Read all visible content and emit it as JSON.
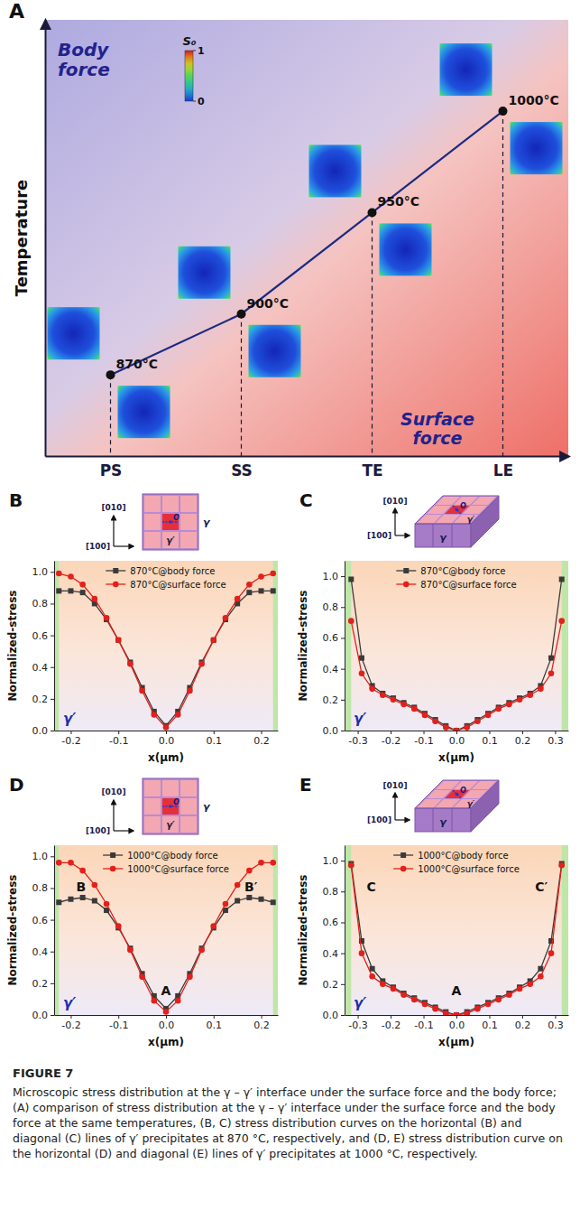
{
  "chart_data": [
    {
      "type": "line",
      "title": "A",
      "categories": [
        "PS",
        "SS",
        "TE",
        "LE"
      ],
      "y_label": "Temperature",
      "series": [
        {
          "values": [
            870,
            900,
            950,
            1000
          ],
          "value_labels": [
            "870°C",
            "900°C",
            "950°C",
            "1000°C"
          ],
          "color": "#1c2a80",
          "marker": "circle"
        }
      ],
      "ylim": [
        830,
        1045
      ],
      "yticks": [],
      "tick_labels": "x",
      "data_labels": true,
      "annotations": [
        "Body force",
        "Surface force"
      ],
      "colorbar": {
        "label": "S₀",
        "range": [
          0,
          1
        ],
        "ticks": [
          1,
          0
        ]
      }
    },
    {
      "type": "line",
      "title": "B",
      "x": [
        -0.225,
        -0.2,
        -0.175,
        -0.15,
        -0.125,
        -0.1,
        -0.075,
        -0.05,
        -0.025,
        0,
        0.025,
        0.05,
        0.075,
        0.1,
        0.125,
        0.15,
        0.175,
        0.2,
        0.225
      ],
      "series": [
        {
          "name": "870°C@body force",
          "color": "#3a3a3a",
          "marker": "square",
          "values": [
            0.88,
            0.88,
            0.87,
            0.8,
            0.7,
            0.57,
            0.43,
            0.27,
            0.12,
            0.03,
            0.12,
            0.27,
            0.43,
            0.57,
            0.7,
            0.8,
            0.87,
            0.88,
            0.88
          ]
        },
        {
          "name": "870°C@surface force",
          "color": "#e3201b",
          "marker": "circle",
          "values": [
            0.99,
            0.97,
            0.92,
            0.83,
            0.71,
            0.57,
            0.42,
            0.25,
            0.1,
            0.02,
            0.1,
            0.25,
            0.42,
            0.57,
            0.71,
            0.83,
            0.92,
            0.97,
            0.99
          ]
        }
      ],
      "xlim": [
        -0.235,
        0.235
      ],
      "xticks": [
        -0.2,
        -0.1,
        {
          "value": 0,
          "label": "0.0"
        },
        0.1,
        0.2
      ],
      "ylim": [
        0,
        1.07
      ],
      "yticks": [
        {
          "value": 0,
          "label": "0.0"
        },
        0.2,
        0.4,
        0.6,
        0.8,
        {
          "value": 1,
          "label": "1.0"
        }
      ],
      "x_label": "x(μm)",
      "y_label": "Normalized-stress",
      "legend": "top",
      "annotations": {
        "inset": [
          "[010]",
          "[100]",
          "O",
          "γ′",
          "γ"
        ],
        "plot": [
          "γ′"
        ]
      }
    },
    {
      "type": "line",
      "title": "C",
      "x": [
        -0.32,
        -0.288,
        -0.256,
        -0.224,
        -0.192,
        -0.16,
        -0.128,
        -0.096,
        -0.064,
        -0.032,
        0,
        0.032,
        0.064,
        0.096,
        0.128,
        0.16,
        0.192,
        0.224,
        0.256,
        0.288,
        0.32
      ],
      "series": [
        {
          "name": "870°C@body force",
          "color": "#3a3a3a",
          "marker": "square",
          "values": [
            0.98,
            0.47,
            0.29,
            0.24,
            0.21,
            0.18,
            0.15,
            0.11,
            0.07,
            0.03,
            0,
            0.03,
            0.07,
            0.11,
            0.15,
            0.18,
            0.21,
            0.24,
            0.29,
            0.47,
            0.98
          ]
        },
        {
          "name": "870°C@surface force",
          "color": "#e3201b",
          "marker": "circle",
          "values": [
            0.71,
            0.37,
            0.27,
            0.23,
            0.2,
            0.17,
            0.14,
            0.1,
            0.06,
            0.02,
            0,
            0.02,
            0.06,
            0.1,
            0.14,
            0.17,
            0.2,
            0.23,
            0.27,
            0.37,
            0.71
          ]
        }
      ],
      "xlim": [
        -0.34,
        0.34
      ],
      "xticks": [
        -0.3,
        -0.2,
        -0.1,
        {
          "value": 0,
          "label": "0.0"
        },
        0.1,
        0.2,
        0.3
      ],
      "ylim": [
        0,
        1.1
      ],
      "yticks": [
        {
          "value": 0,
          "label": "0.0"
        },
        0.2,
        0.4,
        0.6,
        0.8,
        {
          "value": 1,
          "label": "1.0"
        }
      ],
      "x_label": "x(μm)",
      "y_label": "Normalized-stress",
      "legend": "top",
      "annotations": {
        "inset": [
          "[010]",
          "[100]",
          "O",
          "γ′",
          "γ"
        ],
        "plot": [
          "γ′"
        ]
      }
    },
    {
      "type": "line",
      "title": "D",
      "x": [
        -0.225,
        -0.2,
        -0.175,
        -0.15,
        -0.125,
        -0.1,
        -0.075,
        -0.05,
        -0.025,
        0,
        0.025,
        0.05,
        0.075,
        0.1,
        0.125,
        0.15,
        0.175,
        0.2,
        0.225
      ],
      "series": [
        {
          "name": "1000°C@body force",
          "color": "#3a3a3a",
          "marker": "square",
          "values": [
            0.71,
            0.73,
            0.74,
            0.72,
            0.66,
            0.55,
            0.42,
            0.26,
            0.12,
            0.04,
            0.12,
            0.26,
            0.42,
            0.55,
            0.66,
            0.72,
            0.74,
            0.73,
            0.71
          ]
        },
        {
          "name": "1000°C@surface force",
          "color": "#e3201b",
          "marker": "circle",
          "values": [
            0.96,
            0.96,
            0.91,
            0.82,
            0.7,
            0.56,
            0.41,
            0.24,
            0.09,
            0.02,
            0.09,
            0.24,
            0.41,
            0.56,
            0.7,
            0.82,
            0.91,
            0.96,
            0.96
          ]
        }
      ],
      "xlim": [
        -0.235,
        0.235
      ],
      "xticks": [
        -0.2,
        -0.1,
        {
          "value": 0,
          "label": "0.0"
        },
        0.1,
        0.2
      ],
      "ylim": [
        0,
        1.07
      ],
      "yticks": [
        {
          "value": 0,
          "label": "0.0"
        },
        0.2,
        0.4,
        0.6,
        0.8,
        {
          "value": 1,
          "label": "1.0"
        }
      ],
      "x_label": "x(μm)",
      "y_label": "Normalized-stress",
      "legend": "top",
      "annotations": {
        "inset": [
          "[010]",
          "[100]",
          "O",
          "γ′",
          "γ"
        ],
        "plot": [
          "γ′",
          "A",
          "B",
          "B′"
        ]
      }
    },
    {
      "type": "line",
      "title": "E",
      "x": [
        -0.32,
        -0.288,
        -0.256,
        -0.224,
        -0.192,
        -0.16,
        -0.128,
        -0.096,
        -0.064,
        -0.032,
        0,
        0.032,
        0.064,
        0.096,
        0.128,
        0.16,
        0.192,
        0.224,
        0.256,
        0.288,
        0.32
      ],
      "series": [
        {
          "name": "1000°C@body force",
          "color": "#3a3a3a",
          "marker": "square",
          "values": [
            0.98,
            0.48,
            0.3,
            0.22,
            0.18,
            0.14,
            0.11,
            0.08,
            0.05,
            0.02,
            0,
            0.02,
            0.05,
            0.08,
            0.11,
            0.14,
            0.18,
            0.22,
            0.3,
            0.48,
            0.98
          ]
        },
        {
          "name": "1000°C@surface force",
          "color": "#e3201b",
          "marker": "circle",
          "values": [
            0.97,
            0.4,
            0.25,
            0.2,
            0.17,
            0.13,
            0.1,
            0.07,
            0.04,
            0.01,
            0,
            0.01,
            0.04,
            0.07,
            0.1,
            0.13,
            0.17,
            0.2,
            0.25,
            0.4,
            0.97
          ]
        }
      ],
      "xlim": [
        -0.34,
        0.34
      ],
      "xticks": [
        -0.3,
        -0.2,
        -0.1,
        {
          "value": 0,
          "label": "0.0"
        },
        0.1,
        0.2,
        0.3
      ],
      "ylim": [
        0,
        1.1
      ],
      "yticks": [
        {
          "value": 0,
          "label": "0.0"
        },
        0.2,
        0.4,
        0.6,
        0.8,
        {
          "value": 1,
          "label": "1.0"
        }
      ],
      "x_label": "x(μm)",
      "y_label": "Normalized-stress",
      "legend": "top",
      "annotations": {
        "inset": [
          "[010]",
          "[100]",
          "O",
          "γ′",
          "γ"
        ],
        "plot": [
          "γ′",
          "A",
          "C",
          "C′"
        ]
      }
    }
  ],
  "caption": {
    "label": "FIGURE 7",
    "text": "Microscopic stress distribution at the γ – γ′ interface under the surface force and the body force; (A) comparison of stress distribution at the γ – γ′ interface under the surface force and the body force at the same temperatures, (B, C) stress distribution curves on the horizontal (B) and diagonal (C) lines of γ′ precipitates at 870 °C, respectively, and (D, E) stress distribution curve on the horizontal (D) and diagonal (E) lines of γ′ precipitates at 1000 °C, respectively."
  }
}
